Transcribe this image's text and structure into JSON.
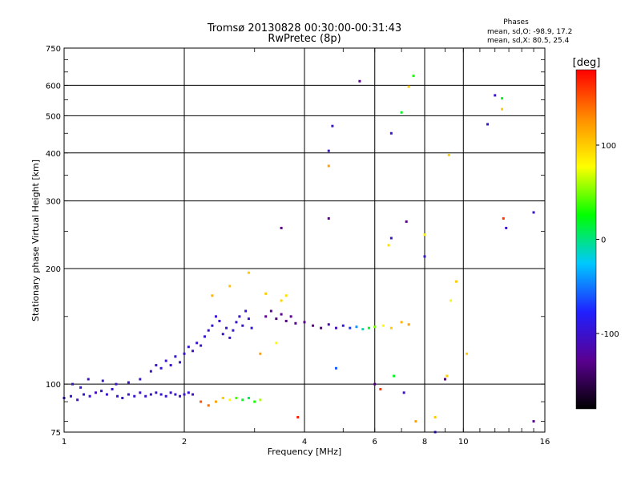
{
  "chart_data": {
    "type": "scatter",
    "title": "Tromsø 20130828 00:30:00-00:31:43",
    "subtitle": "RwPretec (8p)",
    "xlabel": "Frequency [MHz]",
    "ylabel": "Stationary phase Virtual Height [km]",
    "x_scale": "log",
    "y_scale": "log",
    "xlim": [
      1,
      16
    ],
    "ylim": [
      75,
      750
    ],
    "x_ticks": [
      1,
      2,
      4,
      6,
      8,
      10,
      16
    ],
    "y_ticks": [
      75,
      100,
      200,
      300,
      400,
      500,
      600,
      750
    ],
    "grid": true,
    "stats": {
      "heading": "Phases",
      "line_o": "mean, sd,O: -98.9, 17.2",
      "line_x": "mean, sd,X:  80.5, 25.4"
    },
    "colorbar": {
      "label": "[deg]",
      "range": [
        -180,
        180
      ],
      "ticks": [
        100,
        0,
        -100
      ],
      "colors": [
        "#000000",
        "#5a0090",
        "#2020ff",
        "#00c8ff",
        "#00ff00",
        "#ffff00",
        "#ff8c00",
        "#ff0000"
      ]
    },
    "series": [
      {
        "points": [
          [
            1.0,
            92,
            -100
          ],
          [
            1.04,
            93,
            -95
          ],
          [
            1.08,
            91,
            -105
          ],
          [
            1.12,
            94,
            -98
          ],
          [
            1.16,
            93,
            -100
          ],
          [
            1.2,
            95,
            -110
          ],
          [
            1.24,
            96,
            -95
          ],
          [
            1.28,
            94,
            -100
          ],
          [
            1.32,
            97,
            -102
          ],
          [
            1.36,
            93,
            -98
          ],
          [
            1.4,
            92,
            -100
          ],
          [
            1.45,
            94,
            -104
          ],
          [
            1.5,
            93,
            -97
          ],
          [
            1.55,
            95,
            -100
          ],
          [
            1.6,
            93,
            -101
          ],
          [
            1.65,
            94,
            -99
          ],
          [
            1.7,
            95,
            -102
          ],
          [
            1.75,
            94,
            -98
          ],
          [
            1.8,
            93,
            -100
          ],
          [
            1.85,
            95,
            -103
          ],
          [
            1.9,
            94,
            -97
          ],
          [
            1.95,
            93,
            -100
          ],
          [
            2.0,
            94,
            -102
          ],
          [
            2.05,
            95,
            -99
          ],
          [
            2.1,
            94,
            -101
          ],
          [
            1.05,
            100,
            -100
          ],
          [
            1.1,
            98,
            -95
          ],
          [
            1.15,
            103,
            -105
          ],
          [
            1.25,
            102,
            -98
          ],
          [
            1.35,
            100,
            -100
          ],
          [
            1.45,
            101,
            -102
          ],
          [
            1.55,
            103,
            -99
          ],
          [
            1.65,
            108,
            -100
          ],
          [
            1.7,
            112,
            -103
          ],
          [
            1.75,
            110,
            -97
          ],
          [
            1.8,
            115,
            -100
          ],
          [
            1.85,
            112,
            -104
          ],
          [
            1.9,
            118,
            -98
          ],
          [
            1.95,
            114,
            -100
          ],
          [
            2.0,
            120,
            -101
          ],
          [
            2.05,
            125,
            -99
          ],
          [
            2.1,
            122,
            -102
          ],
          [
            2.15,
            128,
            -100
          ],
          [
            2.2,
            126,
            -98
          ],
          [
            2.25,
            133,
            -100
          ],
          [
            2.3,
            138,
            -103
          ],
          [
            2.35,
            142,
            -97
          ],
          [
            2.4,
            150,
            -100
          ],
          [
            2.45,
            146,
            -102
          ],
          [
            2.5,
            135,
            -99
          ],
          [
            2.55,
            140,
            -100
          ],
          [
            2.6,
            132,
            -101
          ],
          [
            2.65,
            138,
            -98
          ],
          [
            2.7,
            145,
            -100
          ],
          [
            2.75,
            150,
            -102
          ],
          [
            2.8,
            142,
            -99
          ],
          [
            2.85,
            155,
            -100
          ],
          [
            2.9,
            148,
            -101
          ],
          [
            2.95,
            140,
            -98
          ],
          [
            3.2,
            150,
            -130
          ],
          [
            3.3,
            155,
            -125
          ],
          [
            3.4,
            148,
            -135
          ],
          [
            3.5,
            152,
            -128
          ],
          [
            3.6,
            146,
            -132
          ],
          [
            3.7,
            150,
            -127
          ],
          [
            3.8,
            144,
            -133
          ],
          [
            4.0,
            145,
            -130
          ],
          [
            4.2,
            142,
            -128
          ],
          [
            4.4,
            140,
            -135
          ],
          [
            4.6,
            143,
            -120
          ],
          [
            4.8,
            140,
            -110
          ],
          [
            5.0,
            142,
            -90
          ],
          [
            5.2,
            140,
            -70
          ],
          [
            5.4,
            141,
            -40
          ],
          [
            5.6,
            139,
            -10
          ],
          [
            5.8,
            140,
            20
          ],
          [
            6.0,
            141,
            50
          ],
          [
            6.3,
            142,
            80
          ],
          [
            6.6,
            140,
            100
          ],
          [
            7.0,
            145,
            110
          ],
          [
            7.3,
            143,
            120
          ],
          [
            2.4,
            90,
            120
          ],
          [
            2.5,
            92,
            100
          ],
          [
            2.6,
            91,
            80
          ],
          [
            2.7,
            92,
            40
          ],
          [
            2.8,
            91,
            20
          ],
          [
            2.9,
            92,
            10
          ],
          [
            3.0,
            90,
            30
          ],
          [
            3.1,
            91,
            60
          ],
          [
            2.3,
            88,
            140
          ],
          [
            2.2,
            90,
            150
          ],
          [
            2.35,
            170,
            110
          ],
          [
            2.6,
            180,
            105
          ],
          [
            2.9,
            195,
            100
          ],
          [
            3.2,
            172,
            100
          ],
          [
            3.5,
            165,
            95
          ],
          [
            3.6,
            170,
            90
          ],
          [
            3.1,
            120,
            120
          ],
          [
            3.4,
            128,
            80
          ],
          [
            4.6,
            405,
            -100
          ],
          [
            4.6,
            370,
            120
          ],
          [
            4.7,
            470,
            -100
          ],
          [
            4.6,
            270,
            -130
          ],
          [
            3.5,
            255,
            -130
          ],
          [
            5.5,
            615,
            -130
          ],
          [
            6.6,
            450,
            -100
          ],
          [
            6.6,
            240,
            -100
          ],
          [
            7.2,
            265,
            -130
          ],
          [
            7.5,
            635,
            30
          ],
          [
            7.3,
            595,
            100
          ],
          [
            7.0,
            510,
            20
          ],
          [
            6.5,
            230,
            90
          ],
          [
            8.0,
            215,
            -100
          ],
          [
            8.0,
            245,
            80
          ],
          [
            9.2,
            395,
            100
          ],
          [
            11.5,
            475,
            -100
          ],
          [
            12.0,
            565,
            -100
          ],
          [
            12.5,
            555,
            20
          ],
          [
            12.5,
            520,
            100
          ],
          [
            12.6,
            270,
            160
          ],
          [
            12.8,
            255,
            -100
          ],
          [
            15.0,
            280,
            -100
          ],
          [
            15.0,
            80,
            -130
          ],
          [
            4.8,
            110,
            -60
          ],
          [
            6.0,
            100,
            -140
          ],
          [
            6.2,
            97,
            160
          ],
          [
            6.7,
            105,
            20
          ],
          [
            7.1,
            95,
            -100
          ],
          [
            7.6,
            80,
            120
          ],
          [
            8.5,
            75,
            -90
          ],
          [
            8.5,
            82,
            100
          ],
          [
            9.0,
            103,
            -140
          ],
          [
            9.1,
            105,
            100
          ],
          [
            9.3,
            165,
            80
          ],
          [
            9.6,
            185,
            100
          ],
          [
            10.2,
            120,
            100
          ],
          [
            3.85,
            82,
            170
          ]
        ]
      }
    ]
  }
}
